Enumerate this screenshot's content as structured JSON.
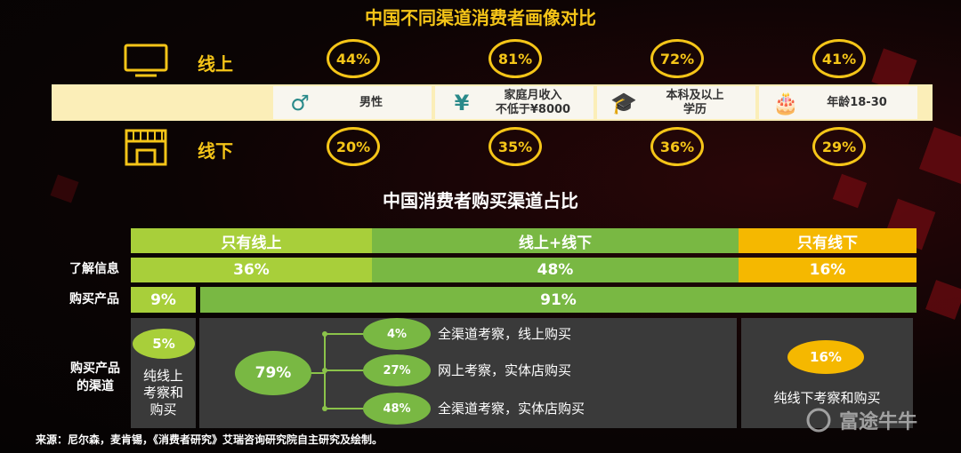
{
  "title": "中国不同渠道消费者画像对比",
  "profile": {
    "online_label": "线上",
    "offline_label": "线下",
    "attributes": [
      "男性",
      "家庭月收入\n不低于¥8000",
      "本科及以上\n学历",
      "年龄18-30"
    ],
    "online": [
      "44%",
      "81%",
      "72%",
      "41%"
    ],
    "offline": [
      "20%",
      "35%",
      "36%",
      "29%"
    ]
  },
  "channels": {
    "title": "中国消费者购买渠道占比",
    "header": [
      "只有线上",
      "线上+线下",
      "只有线下"
    ],
    "info": {
      "label": "了解信息",
      "values": [
        "36%",
        "48%",
        "16%"
      ]
    },
    "purchase": {
      "label": "购买产品",
      "values": [
        "9%",
        "91%"
      ]
    },
    "routes": {
      "label": "购买产品\n的渠道",
      "online_only": {
        "value": "5%",
        "text": "纯线上\n考察和\n购买"
      },
      "mixed": {
        "value": "79%",
        "branches": [
          {
            "value": "4%",
            "text": "全渠道考察，线上购买"
          },
          {
            "value": "27%",
            "text": "网上考察，实体店购买"
          },
          {
            "value": "48%",
            "text": "全渠道考察，实体店购买"
          }
        ]
      },
      "offline_only": {
        "value": "16%",
        "text": "纯线下考察和购买"
      }
    }
  },
  "source": "来源：尼尔森，麦肯锡，《消费者研究》艾瑞咨询研究院自主研究及绘制。",
  "watermark": "富途牛牛"
}
